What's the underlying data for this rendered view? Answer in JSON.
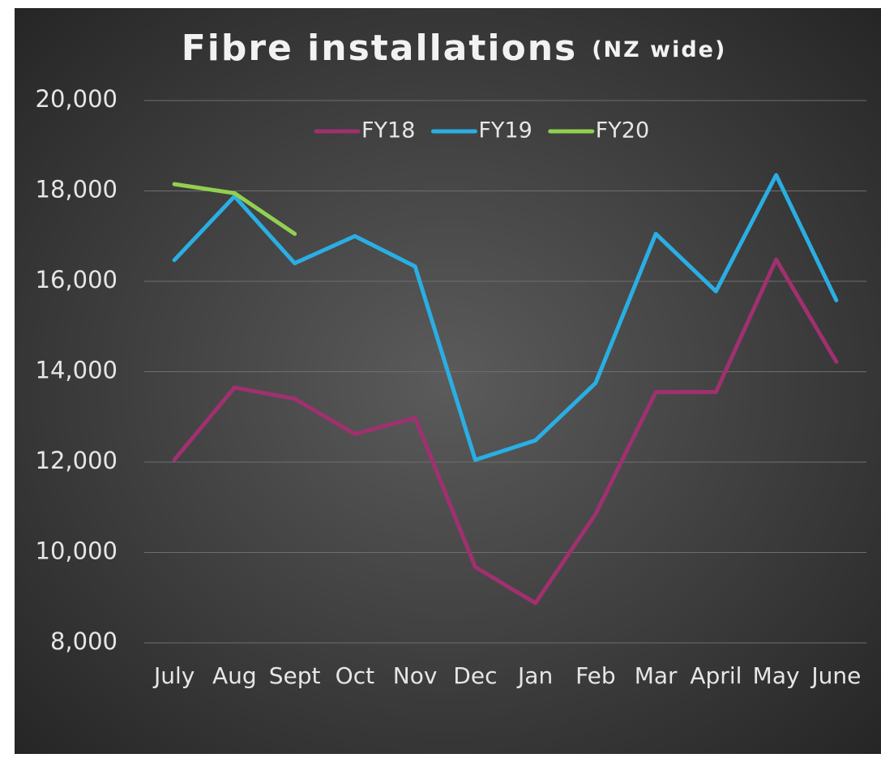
{
  "chart_data": {
    "type": "line",
    "title": "Fibre installations",
    "subtitle": "(NZ wide)",
    "categories": [
      "July",
      "Aug",
      "Sept",
      "Oct",
      "Nov",
      "Dec",
      "Jan",
      "Feb",
      "Mar",
      "April",
      "May",
      "June"
    ],
    "series": [
      {
        "name": "FY18",
        "color": "#a0306f",
        "values": [
          12050,
          13650,
          13400,
          12620,
          12980,
          9680,
          8880,
          10850,
          13550,
          13550,
          16480,
          14220
        ]
      },
      {
        "name": "FY19",
        "color": "#2aaee3",
        "values": [
          16470,
          17880,
          16400,
          17000,
          16330,
          12050,
          12480,
          13750,
          17050,
          15780,
          18350,
          15580
        ]
      },
      {
        "name": "FY20",
        "color": "#92d050",
        "values": [
          18150,
          17950,
          17050,
          null,
          null,
          null,
          null,
          null,
          null,
          null,
          null,
          null
        ]
      }
    ],
    "ylim": [
      8000,
      20000
    ],
    "yticks": [
      {
        "value": 8000,
        "label": "8,000"
      },
      {
        "value": 10000,
        "label": "10,000"
      },
      {
        "value": 12000,
        "label": "12,000"
      },
      {
        "value": 14000,
        "label": "14,000"
      },
      {
        "value": 16000,
        "label": "16,000"
      },
      {
        "value": 18000,
        "label": "18,000"
      },
      {
        "value": 20000,
        "label": "20,000"
      }
    ],
    "grid": true,
    "legend": "top"
  }
}
